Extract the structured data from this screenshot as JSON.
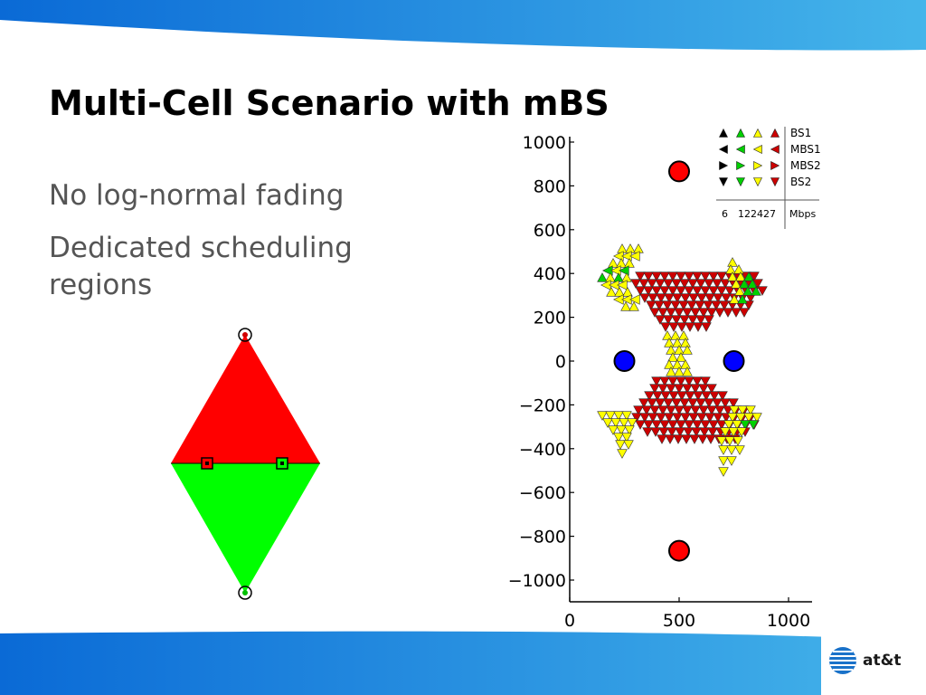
{
  "slide": {
    "title": "Multi-Cell Scenario with mBS",
    "bullets": [
      "No log-normal fading",
      "Dedicated scheduling regions"
    ],
    "logo_text": "at&t",
    "colors": {
      "banner_start": "#0a6ad6",
      "banner_end": "#45b5ea",
      "red": "#ff0000",
      "green": "#00ff00"
    }
  },
  "chart_data": {
    "type": "scatter",
    "xlim": [
      0,
      1100
    ],
    "ylim": [
      -1100,
      1100
    ],
    "xticks": [
      0,
      500,
      1000
    ],
    "yticks": [
      1000,
      800,
      600,
      400,
      200,
      0,
      -200,
      -400,
      -600,
      -800,
      -1000
    ],
    "legend": {
      "placement": "top-right",
      "entries": [
        "BS1",
        "MBS1",
        "MBS2",
        "BS2"
      ],
      "scale_min": "6",
      "scale_max": "122427",
      "unit": "Mbps"
    },
    "stations": [
      {
        "role": "BS1",
        "x": 500,
        "y": 866,
        "color": "#ff0000"
      },
      {
        "role": "BS2",
        "x": 500,
        "y": -866,
        "color": "#ff0000"
      },
      {
        "role": "MBS1",
        "x": 250,
        "y": 0,
        "color": "#0000ff"
      },
      {
        "role": "MBS2",
        "x": 750,
        "y": 0,
        "color": "#0000ff"
      }
    ],
    "user_rate_colors": [
      "#00d000",
      "#ffff00",
      "#cc0000"
    ]
  }
}
